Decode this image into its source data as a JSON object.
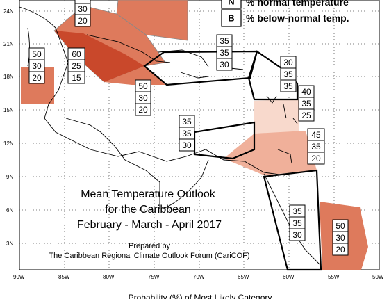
{
  "title": {
    "line1": "Mean Temperature Outlook",
    "line2": "for the Caribbean",
    "line3": "February - March - April 2017"
  },
  "credit": {
    "prepared": "Prepared by",
    "org": "The Caribbean Regional Climate Outlook Forum (CariCOF)"
  },
  "caption": "Probability (%) of Most Likely Category",
  "legend": [
    {
      "key": "N",
      "text": "% normal temperature"
    },
    {
      "key": "B",
      "text": "% below-normal temp."
    }
  ],
  "axes": {
    "x_ticks": [
      "90W",
      "85W",
      "80W",
      "75W",
      "70W",
      "65W",
      "60W",
      "55W",
      "50W"
    ],
    "y_ticks": [
      "24N",
      "21N",
      "18N",
      "15N",
      "12N",
      "9N",
      "6N",
      "3N"
    ]
  },
  "colors": {
    "above_60": "#c9482b",
    "above_50": "#de7a5c",
    "above_45": "#f0b09a",
    "above_40": "#f8d9cc",
    "outline_normal": "#000000"
  },
  "regions": [
    {
      "id": "bahamas-top",
      "above": "",
      "normal": "30",
      "below": "20"
    },
    {
      "id": "belize",
      "above": "50",
      "normal": "30",
      "below": "20"
    },
    {
      "id": "cuba-west",
      "above": "60",
      "normal": "25",
      "below": "15"
    },
    {
      "id": "jamaica",
      "above": "50",
      "normal": "30",
      "below": "20"
    },
    {
      "id": "hispaniola",
      "above": "35",
      "normal": "35",
      "below": "30"
    },
    {
      "id": "leeward",
      "above": "30",
      "normal": "35",
      "below": "35"
    },
    {
      "id": "windward",
      "above": "40",
      "normal": "35",
      "below": "25"
    },
    {
      "id": "abc-islands",
      "above": "35",
      "normal": "35",
      "below": "30"
    },
    {
      "id": "trinidad",
      "above": "45",
      "normal": "35",
      "below": "20"
    },
    {
      "id": "guyana",
      "above": "35",
      "normal": "35",
      "below": "30"
    },
    {
      "id": "french-guiana",
      "above": "50",
      "normal": "30",
      "below": "20"
    }
  ]
}
